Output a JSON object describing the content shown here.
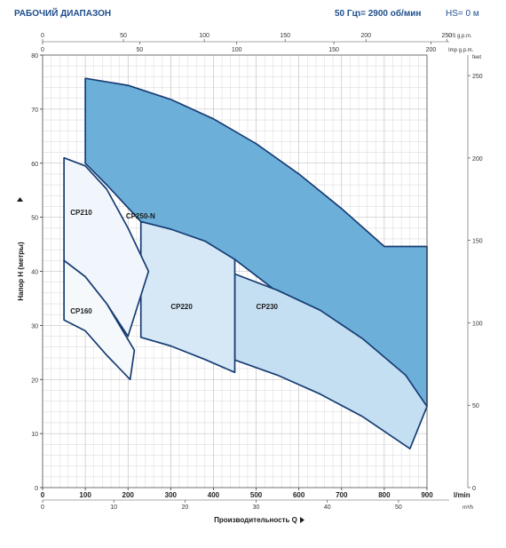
{
  "header": {
    "title": "РАБОЧИЙ ДИАПАЗОН",
    "frequency": "50 Гц",
    "speed": "n= 2900 об/мин",
    "suction": "HS= 0 м"
  },
  "chart_data": {
    "type": "area",
    "title": "РАБОЧИЙ ДИАПАЗОН",
    "xlabel": "Производительность Q",
    "ylabel": "Напор H (метры)",
    "x_unit": "l/min",
    "xlim": [
      0,
      900
    ],
    "ylim": [
      0,
      80
    ],
    "x_ticks": [
      0,
      100,
      200,
      300,
      400,
      500,
      600,
      700,
      800,
      900
    ],
    "y_ticks": [
      0,
      10,
      20,
      30,
      40,
      50,
      60,
      70,
      80
    ],
    "secondary_axes": {
      "bottom_m3h": {
        "unit": "m³/h",
        "ticks": [
          "0",
          "10",
          "20",
          "30",
          "40",
          "50"
        ]
      },
      "top_us_gpm": {
        "unit": "US g.p.m.",
        "ticks": [
          "0",
          "50",
          "100",
          "150",
          "200",
          "250"
        ]
      },
      "top_imp_gpm": {
        "unit": "Imp g.p.m.",
        "ticks": [
          "0",
          "50",
          "100",
          "150",
          "200"
        ]
      },
      "right_feet": {
        "unit": "feet",
        "ticks": [
          "0",
          "50",
          "100",
          "150",
          "200",
          "250"
        ]
      }
    },
    "grid": true,
    "series": [
      {
        "name": "CP250-N",
        "color": "#6cb0da",
        "top": [
          [
            100,
            75.7
          ],
          [
            200,
            74.4
          ],
          [
            300,
            71.8
          ],
          [
            400,
            68.2
          ],
          [
            500,
            63.6
          ],
          [
            600,
            58.0
          ],
          [
            700,
            51.6
          ],
          [
            800,
            44.6
          ],
          [
            900,
            44.6
          ]
        ],
        "bottom": [
          [
            100,
            60
          ],
          [
            150,
            56
          ],
          [
            230,
            49.2
          ],
          [
            450,
            42.2
          ],
          [
            900,
            15
          ]
        ],
        "label_at": [
          195,
          49.8
        ]
      },
      {
        "name": "CP230",
        "color": "#c5dff2",
        "top": [
          [
            450,
            39.5
          ],
          [
            550,
            36.5
          ],
          [
            650,
            32.8
          ],
          [
            750,
            27.5
          ],
          [
            850,
            20.8
          ],
          [
            900,
            15
          ]
        ],
        "bottom": [
          [
            450,
            23.6
          ],
          [
            550,
            20.8
          ],
          [
            650,
            17.3
          ],
          [
            750,
            13.1
          ],
          [
            860,
            7.2
          ],
          [
            900,
            15
          ]
        ],
        "label_at": [
          500,
          33
        ]
      },
      {
        "name": "CP220",
        "color": "#d6e8f6",
        "top": [
          [
            230,
            49.2
          ],
          [
            300,
            47.8
          ],
          [
            380,
            45.6
          ],
          [
            450,
            42.2
          ]
        ],
        "bottom": [
          [
            230,
            27.8
          ],
          [
            300,
            26.2
          ],
          [
            380,
            23.7
          ],
          [
            450,
            21.3
          ]
        ],
        "label_at": [
          300,
          33
        ]
      },
      {
        "name": "CP210",
        "color": "#f0f6fb",
        "top": [
          [
            50,
            61
          ],
          [
            100,
            59.5
          ],
          [
            150,
            55.2
          ],
          [
            200,
            48
          ],
          [
            248,
            40
          ]
        ],
        "bottom": [
          [
            50,
            42
          ],
          [
            100,
            39
          ],
          [
            150,
            34
          ],
          [
            200,
            28
          ],
          [
            248,
            40
          ]
        ],
        "label_at": [
          65,
          50.4
        ]
      },
      {
        "name": "CP160",
        "color": "#f6f9fc",
        "top": [
          [
            50,
            42
          ],
          [
            100,
            39
          ],
          [
            150,
            34
          ],
          [
            215,
            25.4
          ]
        ],
        "bottom": [
          [
            50,
            31
          ],
          [
            100,
            29
          ],
          [
            150,
            24.5
          ],
          [
            205,
            20
          ]
        ],
        "label_at": [
          65,
          32.2
        ]
      }
    ]
  }
}
